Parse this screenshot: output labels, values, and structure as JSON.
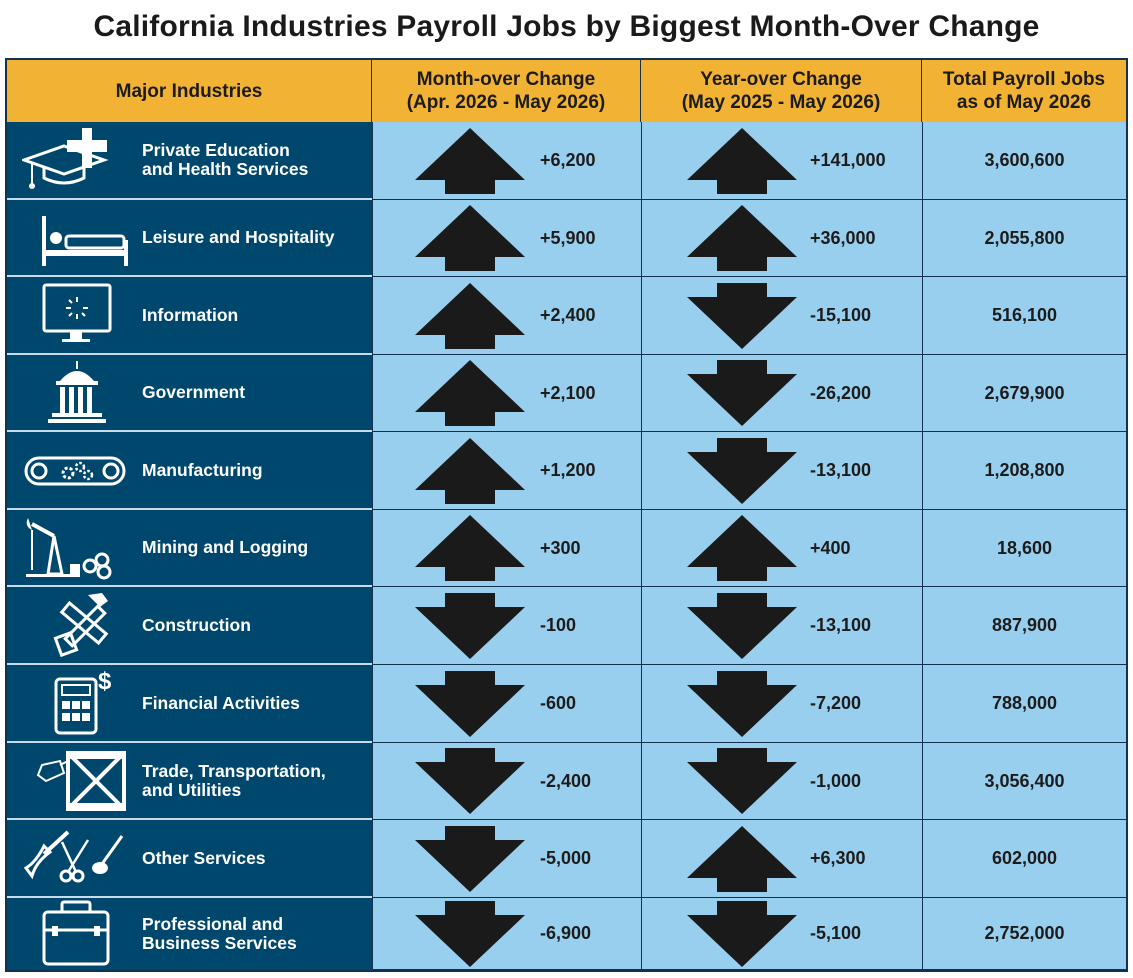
{
  "title": "California Industries Payroll Jobs by Biggest Month-Over Change",
  "header": {
    "col1": "Major Industries",
    "col2_line1": "Month-over Change",
    "col2_line2": "(Apr. 2026 - May 2026)",
    "col3_line1": "Year-over Change",
    "col3_line2": "(May 2025 - May 2026)",
    "col4_line1": "Total Payroll Jobs",
    "col4_line2": "as of May 2026"
  },
  "colors": {
    "header_bg": "#f2b233",
    "industry_bg": "#00476e",
    "data_bg": "#99cfee",
    "arrow": "#1a1a1a"
  },
  "chart_data": {
    "type": "table",
    "title": "California Industries Payroll Jobs by Biggest Month-Over Change",
    "columns": [
      "Major Industries",
      "Month-over Change (Apr. 2026 - May 2026)",
      "Year-over Change (May 2025 - May 2026)",
      "Total Payroll Jobs as of May 2026"
    ],
    "rows": [
      {
        "industry_line1": "Private Education",
        "industry_line2": "and Health Services",
        "icon": "education-health-icon",
        "mom": "+6,200",
        "mom_dir": "up",
        "yoy": "+141,000",
        "yoy_dir": "up",
        "total": "3,600,600"
      },
      {
        "industry_line1": "Leisure and Hospitality",
        "industry_line2": "",
        "icon": "bed-icon",
        "mom": "+5,900",
        "mom_dir": "up",
        "yoy": "+36,000",
        "yoy_dir": "up",
        "total": "2,055,800"
      },
      {
        "industry_line1": "Information",
        "industry_line2": "",
        "icon": "monitor-icon",
        "mom": "+2,400",
        "mom_dir": "up",
        "yoy": "-15,100",
        "yoy_dir": "down",
        "total": "516,100"
      },
      {
        "industry_line1": "Government",
        "industry_line2": "",
        "icon": "capitol-icon",
        "mom": "+2,100",
        "mom_dir": "up",
        "yoy": "-26,200",
        "yoy_dir": "down",
        "total": "2,679,900"
      },
      {
        "industry_line1": "Manufacturing",
        "industry_line2": "",
        "icon": "conveyor-gears-icon",
        "mom": "+1,200",
        "mom_dir": "up",
        "yoy": "-13,100",
        "yoy_dir": "down",
        "total": "1,208,800"
      },
      {
        "industry_line1": "Mining and Logging",
        "industry_line2": "",
        "icon": "pumpjack-logs-icon",
        "mom": "+300",
        "mom_dir": "up",
        "yoy": "+400",
        "yoy_dir": "up",
        "total": "18,600"
      },
      {
        "industry_line1": "Construction",
        "industry_line2": "",
        "icon": "hammer-saw-icon",
        "mom": "-100",
        "mom_dir": "down",
        "yoy": "-13,100",
        "yoy_dir": "down",
        "total": "887,900"
      },
      {
        "industry_line1": "Financial Activities",
        "industry_line2": "",
        "icon": "calculator-dollar-icon",
        "mom": "-600",
        "mom_dir": "down",
        "yoy": "-7,200",
        "yoy_dir": "down",
        "total": "788,000"
      },
      {
        "industry_line1": "Trade, Transportation,",
        "industry_line2": "and Utilities",
        "icon": "crate-tag-icon",
        "mom": "-2,400",
        "mom_dir": "down",
        "yoy": "-1,000",
        "yoy_dir": "down",
        "total": "3,056,400"
      },
      {
        "industry_line1": "Other Services",
        "industry_line2": "",
        "icon": "tools-scissors-icon",
        "mom": "-5,000",
        "mom_dir": "down",
        "yoy": "+6,300",
        "yoy_dir": "up",
        "total": "602,000"
      },
      {
        "industry_line1": "Professional and",
        "industry_line2": "Business Services",
        "icon": "briefcase-icon",
        "mom": "-6,900",
        "mom_dir": "down",
        "yoy": "-5,100",
        "yoy_dir": "down",
        "total": "2,752,000"
      }
    ]
  }
}
